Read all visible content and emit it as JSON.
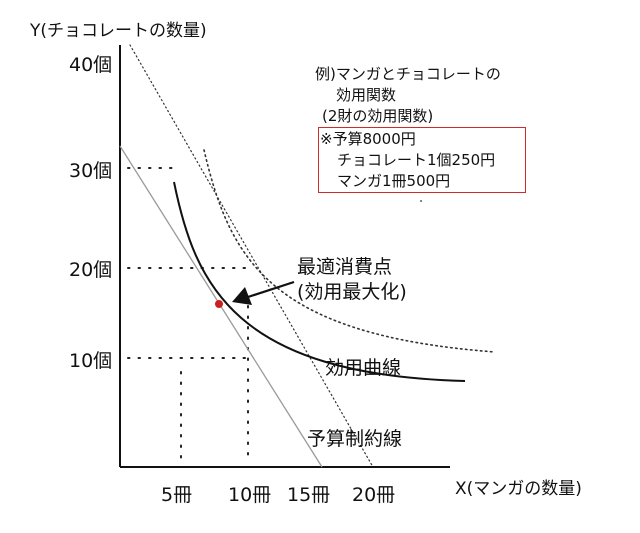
{
  "axes": {
    "y_title": "Y(チョコレートの数量)",
    "x_title": "X(マンガの数量)",
    "y_ticks": [
      "40個",
      "30個",
      "20個",
      "10個"
    ],
    "x_ticks": [
      "5冊",
      "10冊",
      "15冊",
      "20冊"
    ]
  },
  "note": {
    "line1": "例)マンガとチョコレートの",
    "line2": "効用関数",
    "line3": "(2財の効用関数)"
  },
  "budget": {
    "line1": "※予算8000円",
    "line2": "チョコレート1個250円",
    "line3": "マンガ1冊500円"
  },
  "callout": {
    "line1": "最適消費点",
    "line2": "(効用最大化)"
  },
  "labels": {
    "utility_curve": "効用曲線",
    "budget_line": "予算制約線"
  },
  "colors": {
    "budget_box_border": "#d02b2b",
    "optimum_point": "#cc1f1f",
    "budget_line": "#9a9a9a",
    "ink": "#111111"
  }
}
